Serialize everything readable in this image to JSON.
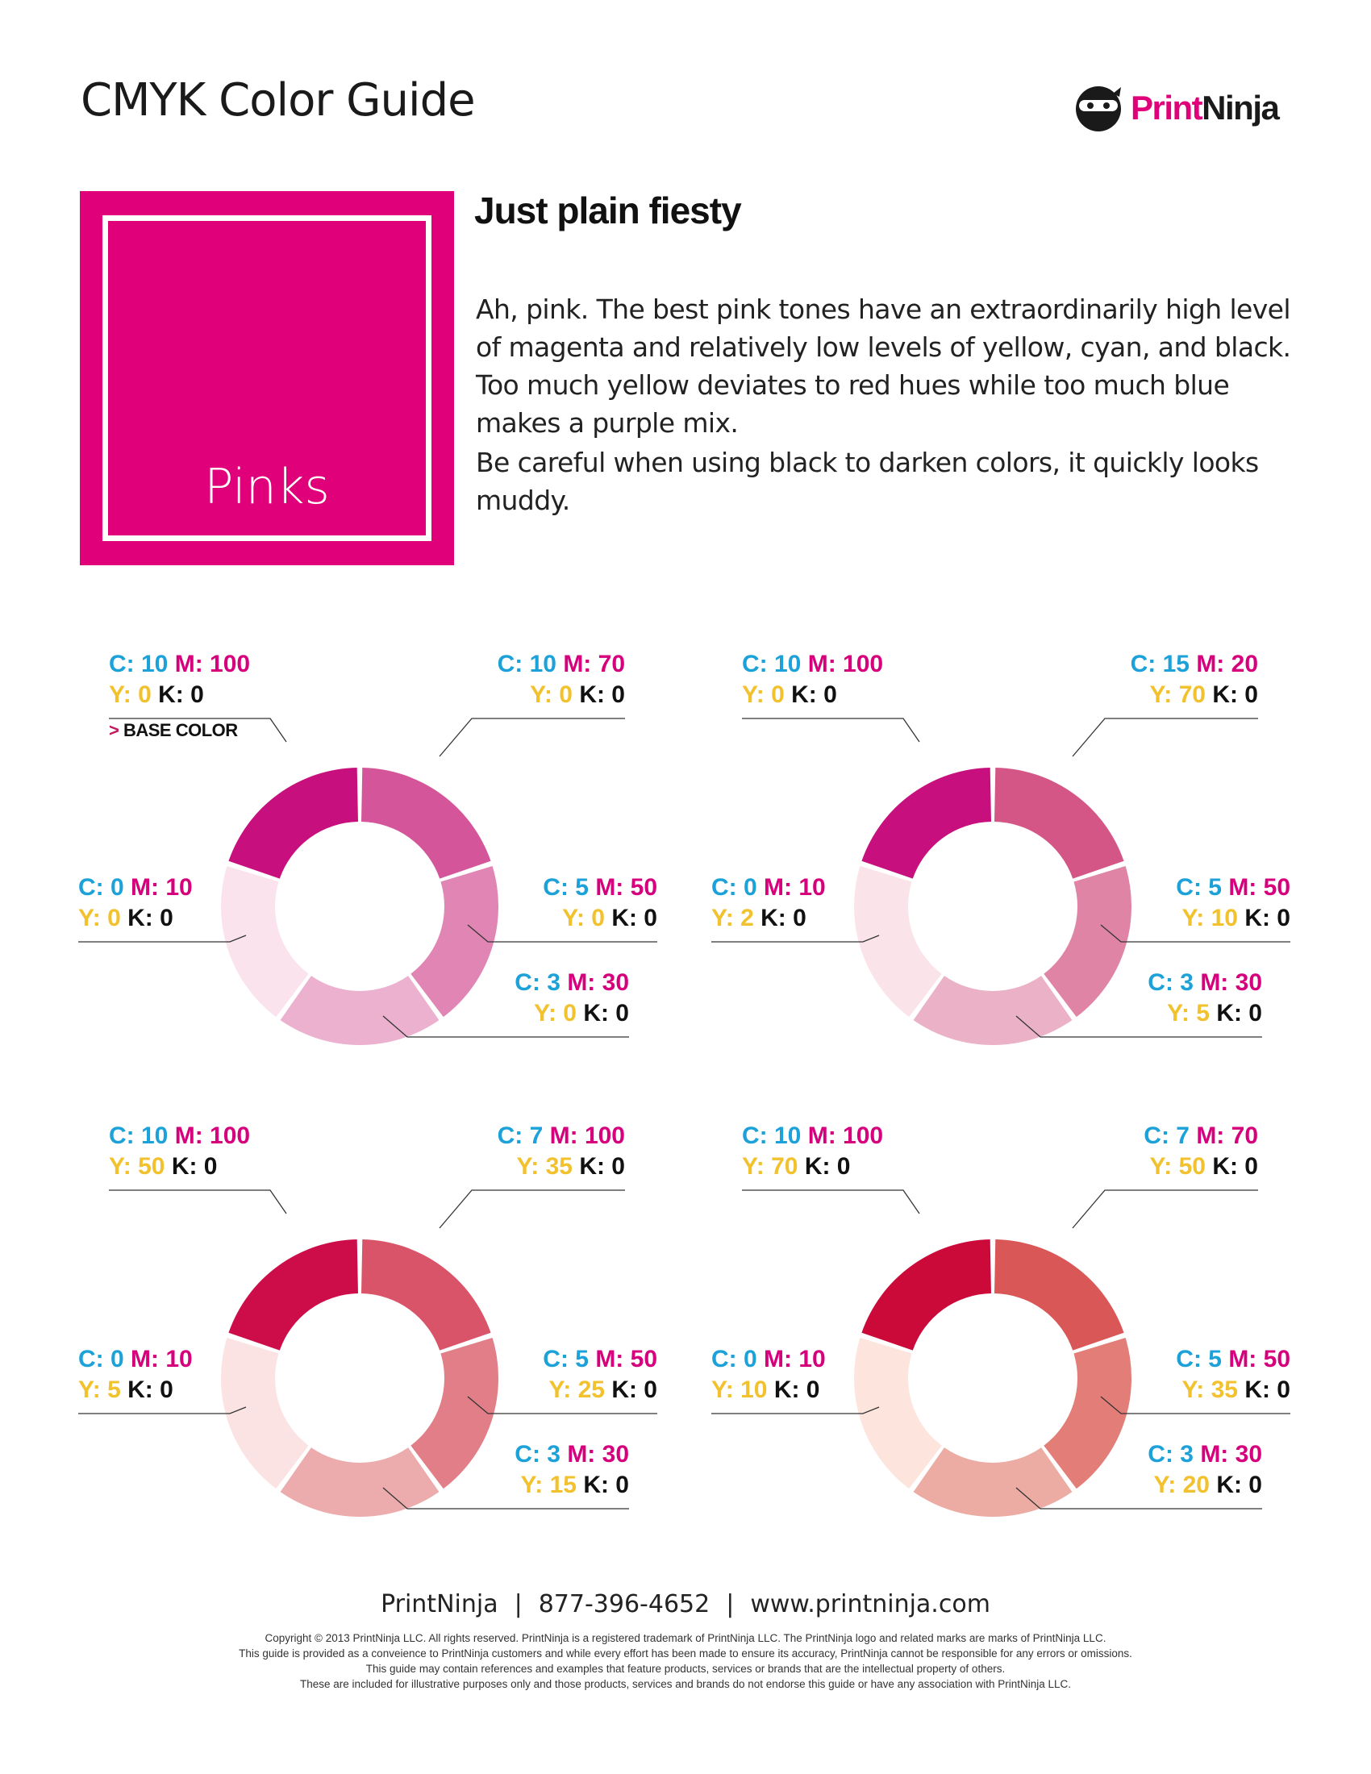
{
  "header": {
    "title": "CMYK Color Guide",
    "logo_text_1": "Print",
    "logo_text_2": "Ninja"
  },
  "swatch": {
    "label": "Pinks",
    "color": "#e0007a"
  },
  "intro": {
    "heading": "Just plain fiesty",
    "paragraph_1": "Ah, pink. The best pink tones have an extraordinarily high level of magenta and relatively low levels of yellow, cyan, and black. Too much yellow deviates to red hues while too much blue makes a purple mix.",
    "paragraph_2": "Be careful when using black to darken colors, it quickly looks muddy."
  },
  "charts": [
    {
      "segments": [
        {
          "c": "10",
          "m": "100",
          "y": "0",
          "k": "0",
          "color": "#c70f7d",
          "base_note": "BASE COLOR"
        },
        {
          "c": "10",
          "m": "70",
          "y": "0",
          "k": "0",
          "color": "#d45599"
        },
        {
          "c": "5",
          "m": "50",
          "y": "0",
          "k": "0",
          "color": "#e085b4"
        },
        {
          "c": "3",
          "m": "30",
          "y": "0",
          "k": "0",
          "color": "#ebb1cf"
        },
        {
          "c": "0",
          "m": "10",
          "y": "0",
          "k": "0",
          "color": "#fbe3ee"
        }
      ]
    },
    {
      "segments": [
        {
          "c": "10",
          "m": "100",
          "y": "0",
          "k": "0",
          "color": "#c70f7d"
        },
        {
          "c": "15",
          "m": "20",
          "y": "70",
          "k": "0",
          "color": "#d35687"
        },
        {
          "c": "5",
          "m": "50",
          "y": "10",
          "k": "0",
          "color": "#e084a6"
        },
        {
          "c": "3",
          "m": "30",
          "y": "5",
          "k": "0",
          "color": "#ebb1c6"
        },
        {
          "c": "0",
          "m": "10",
          "y": "2",
          "k": "0",
          "color": "#fbe3ea"
        }
      ]
    },
    {
      "segments": [
        {
          "c": "10",
          "m": "100",
          "y": "50",
          "k": "0",
          "color": "#cc0d49"
        },
        {
          "c": "7",
          "m": "100",
          "y": "35",
          "k": "0",
          "color": "#d95468"
        },
        {
          "c": "5",
          "m": "50",
          "y": "25",
          "k": "0",
          "color": "#e17e87"
        },
        {
          "c": "3",
          "m": "30",
          "y": "15",
          "k": "0",
          "color": "#ecacad"
        },
        {
          "c": "0",
          "m": "10",
          "y": "5",
          "k": "0",
          "color": "#fce3e3"
        }
      ]
    },
    {
      "segments": [
        {
          "c": "10",
          "m": "100",
          "y": "70",
          "k": "0",
          "color": "#cc0a3a"
        },
        {
          "c": "7",
          "m": "70",
          "y": "50",
          "k": "0",
          "color": "#da5758"
        },
        {
          "c": "5",
          "m": "50",
          "y": "35",
          "k": "0",
          "color": "#e37d78"
        },
        {
          "c": "3",
          "m": "30",
          "y": "20",
          "k": "0",
          "color": "#ecaca4"
        },
        {
          "c": "0",
          "m": "10",
          "y": "10",
          "k": "0",
          "color": "#fde4dd"
        }
      ]
    }
  ],
  "footer": {
    "company": "PrintNinja",
    "phone": "877-396-4652",
    "website": "www.printninja.com",
    "separator": "|",
    "legal_1": "Copyright © 2013 PrintNinja LLC. All rights reserved. PrintNinja is a registered trademark of PrintNinja LLC. The PrintNinja logo and related marks are marks of PrintNinja LLC.",
    "legal_2": "This guide is provided as a conveience to PrintNinja customers and while every effort has been made to ensure its accuracy, PrintNinja cannot be responsible for any errors or omissions.",
    "legal_3": "This guide may contain references and examples that feature products, services or brands that are the intellectual property of others.",
    "legal_4": "These are included for illustrative purposes only and those products, services and brands do not endorse this guide or have any association with PrintNinja LLC."
  }
}
